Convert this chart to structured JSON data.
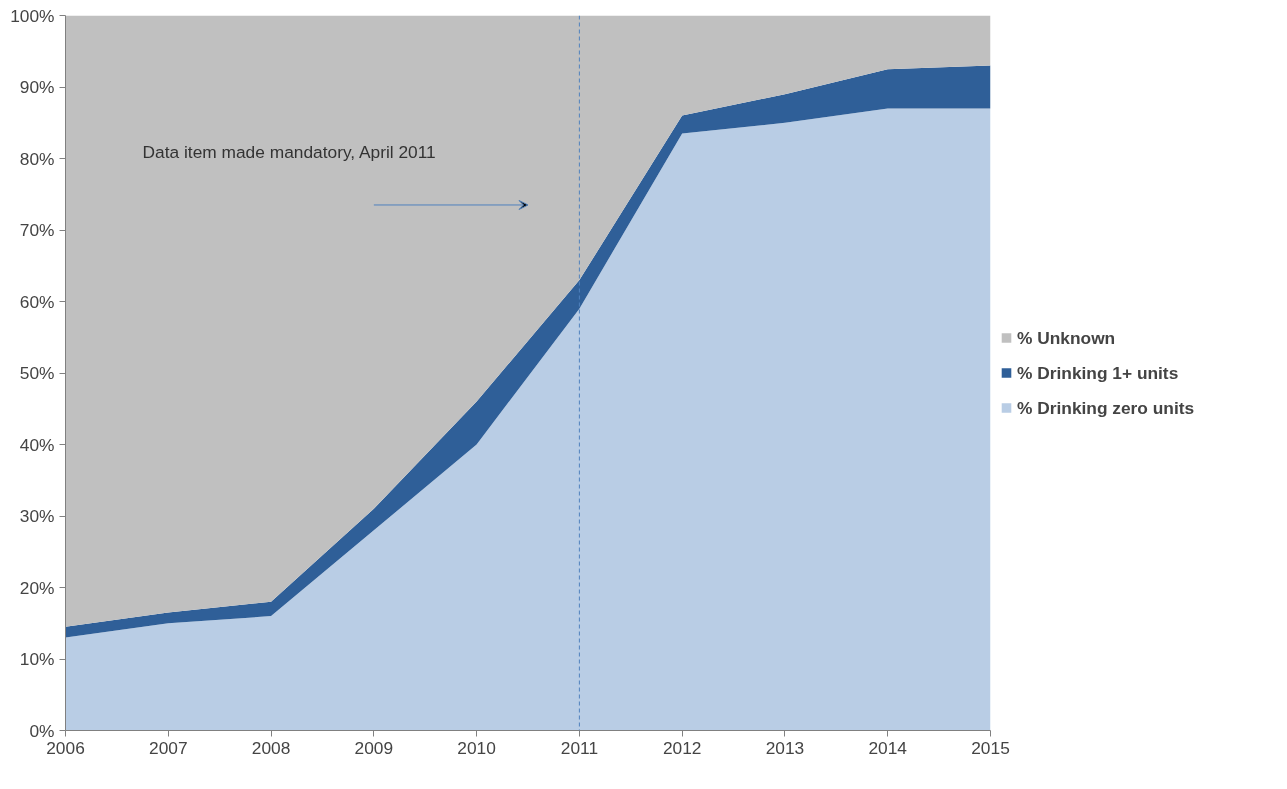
{
  "chart_data": {
    "type": "area",
    "stacked": true,
    "x": [
      2006,
      2007,
      2008,
      2009,
      2010,
      2011,
      2012,
      2013,
      2014,
      2015
    ],
    "series": [
      {
        "name": "% Drinking zero units",
        "color": "#b9cde5",
        "values": [
          13,
          15,
          16,
          28,
          40,
          59,
          83.5,
          85,
          87,
          87
        ]
      },
      {
        "name": "% Drinking 1+ units",
        "color": "#2f5f98",
        "values": [
          1.5,
          1.5,
          2,
          3,
          6,
          4,
          2.5,
          4,
          5.5,
          6
        ]
      },
      {
        "name": "% Unknown",
        "color": "#c0c0c0",
        "values": [
          85.5,
          83.5,
          82,
          69,
          54,
          37,
          14,
          11,
          7.5,
          7
        ]
      }
    ],
    "xlim": [
      2006,
      2015
    ],
    "xticks": [
      2006,
      2007,
      2008,
      2009,
      2010,
      2011,
      2012,
      2013,
      2014,
      2015
    ],
    "ylim": [
      0,
      100
    ],
    "yticks": [
      {
        "value": 0,
        "label": "0%"
      },
      {
        "value": 10,
        "label": "10%"
      },
      {
        "value": 20,
        "label": "20%"
      },
      {
        "value": 30,
        "label": "30%"
      },
      {
        "value": 40,
        "label": "40%"
      },
      {
        "value": 50,
        "label": "50%"
      },
      {
        "value": 60,
        "label": "60%"
      },
      {
        "value": 70,
        "label": "70%"
      },
      {
        "value": 80,
        "label": "80%"
      },
      {
        "value": 90,
        "label": "90%"
      },
      {
        "value": 100,
        "label": "100%"
      }
    ],
    "ref_lines": [
      {
        "axis": "x",
        "value": 2011,
        "label": null,
        "color": "#4f81bd",
        "line_style": "dashed"
      }
    ],
    "annotations": [
      "Data item made mandatory, April 2011"
    ],
    "grid": false,
    "legend": "right"
  }
}
